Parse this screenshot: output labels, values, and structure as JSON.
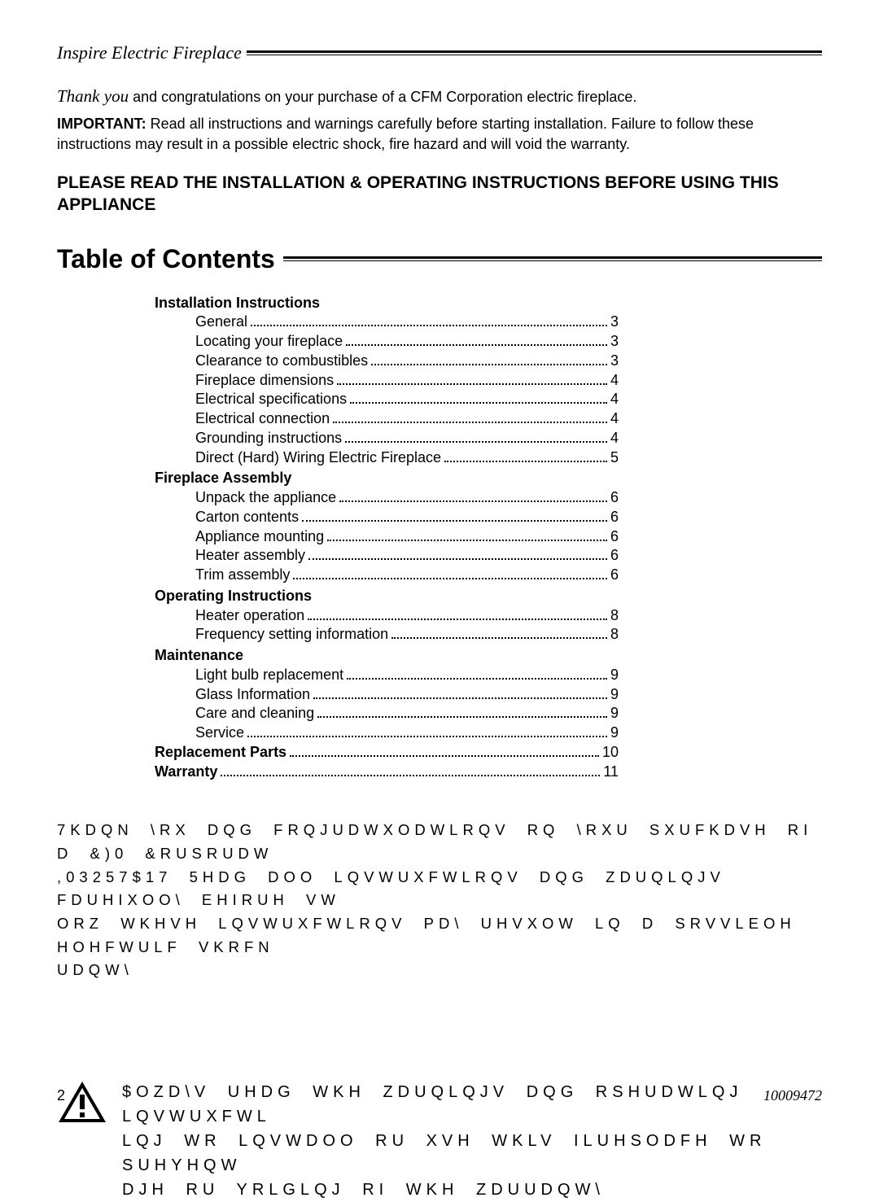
{
  "header": {
    "title": "Inspire Electric Fireplace"
  },
  "intro": {
    "thank_you": "Thank you",
    "thank_rest": " and congratulations on your purchase of a CFM Corporation electric fireplace.",
    "important_label": "IMPORTANT:",
    "important_rest": " Read all instructions and warnings carefully before starting installation. Failure to follow these instructions may result in a possible electric shock, fire hazard and will void the warranty."
  },
  "please_read": "PLEASE READ THE INSTALLATION & OPERATING INSTRUCTIONS BEFORE USING THIS APPLIANCE",
  "toc": {
    "title": "Table of Contents",
    "sections": [
      {
        "heading": "Installation Instructions",
        "items": [
          {
            "label": "General",
            "page": "3"
          },
          {
            "label": "Locating your fireplace",
            "page": "3"
          },
          {
            "label": "Clearance to combustibles",
            "page": "3"
          },
          {
            "label": "Fireplace dimensions",
            "page": "4"
          },
          {
            "label": "Electrical specifications",
            "page": "4"
          },
          {
            "label": "Electrical connection",
            "page": "4"
          },
          {
            "label": "Grounding instructions",
            "page": "4"
          },
          {
            "label": "Direct (Hard) Wiring Electric Fireplace",
            "page": "5"
          }
        ]
      },
      {
        "heading": "Fireplace Assembly",
        "items": [
          {
            "label": "Unpack the appliance",
            "page": "6"
          },
          {
            "label": "Carton contents",
            "page": "6"
          },
          {
            "label": "Appliance mounting",
            "page": "6"
          },
          {
            "label": "Heater assembly",
            "page": "6"
          },
          {
            "label": "Trim assembly",
            "page": "6"
          }
        ]
      },
      {
        "heading": "Operating Instructions",
        "items": [
          {
            "label": "Heater operation",
            "page": "8"
          },
          {
            "label": "Frequency setting information",
            "page": "8"
          }
        ]
      },
      {
        "heading": "Maintenance",
        "items": [
          {
            "label": "Light bulb replacement",
            "page": "9"
          },
          {
            "label": "Glass Information",
            "page": "9"
          },
          {
            "label": "Care and cleaning",
            "page": "9"
          },
          {
            "label": "Service",
            "page": "9"
          }
        ]
      }
    ],
    "tail": [
      {
        "label": "Replacement Parts",
        "page": "10"
      },
      {
        "label": "Warranty",
        "page": "11"
      }
    ]
  },
  "garbled": {
    "p1": "7KDQN \\RX DQG FRQJUDWXODWLRQV RQ \\RXU SXUFKDVH RI D &)0 &RUSRUDW",
    "p2": ",03257$17 5HDG DOO LQVWUXFWLRQV DQG ZDUQLQJV FDUHIXOO\\ EHIRUH VW",
    "p3": "ORZ WKHVH LQVWUXFWLRQV PD\\ UHVXOW LQ D SRVVLEOH HOHFWULF VKRFN",
    "p4": "UDQW\\"
  },
  "warning": {
    "line1": "$OZD\\V UHDG WKH ZDUQLQJV DQG RSHUDWLQJ LQVWUXFWL",
    "line2": "LQJ WR LQVWDOO RU XVH WKLV ILUHSODFH  WR SUHYHQW",
    "line3": "DJH RU YRLGLQJ RI WKH ZDUUDQW\\"
  },
  "footer": {
    "page_number": "2",
    "doc_number": "10009472"
  },
  "colors": {
    "text": "#000000",
    "background": "#ffffff"
  }
}
